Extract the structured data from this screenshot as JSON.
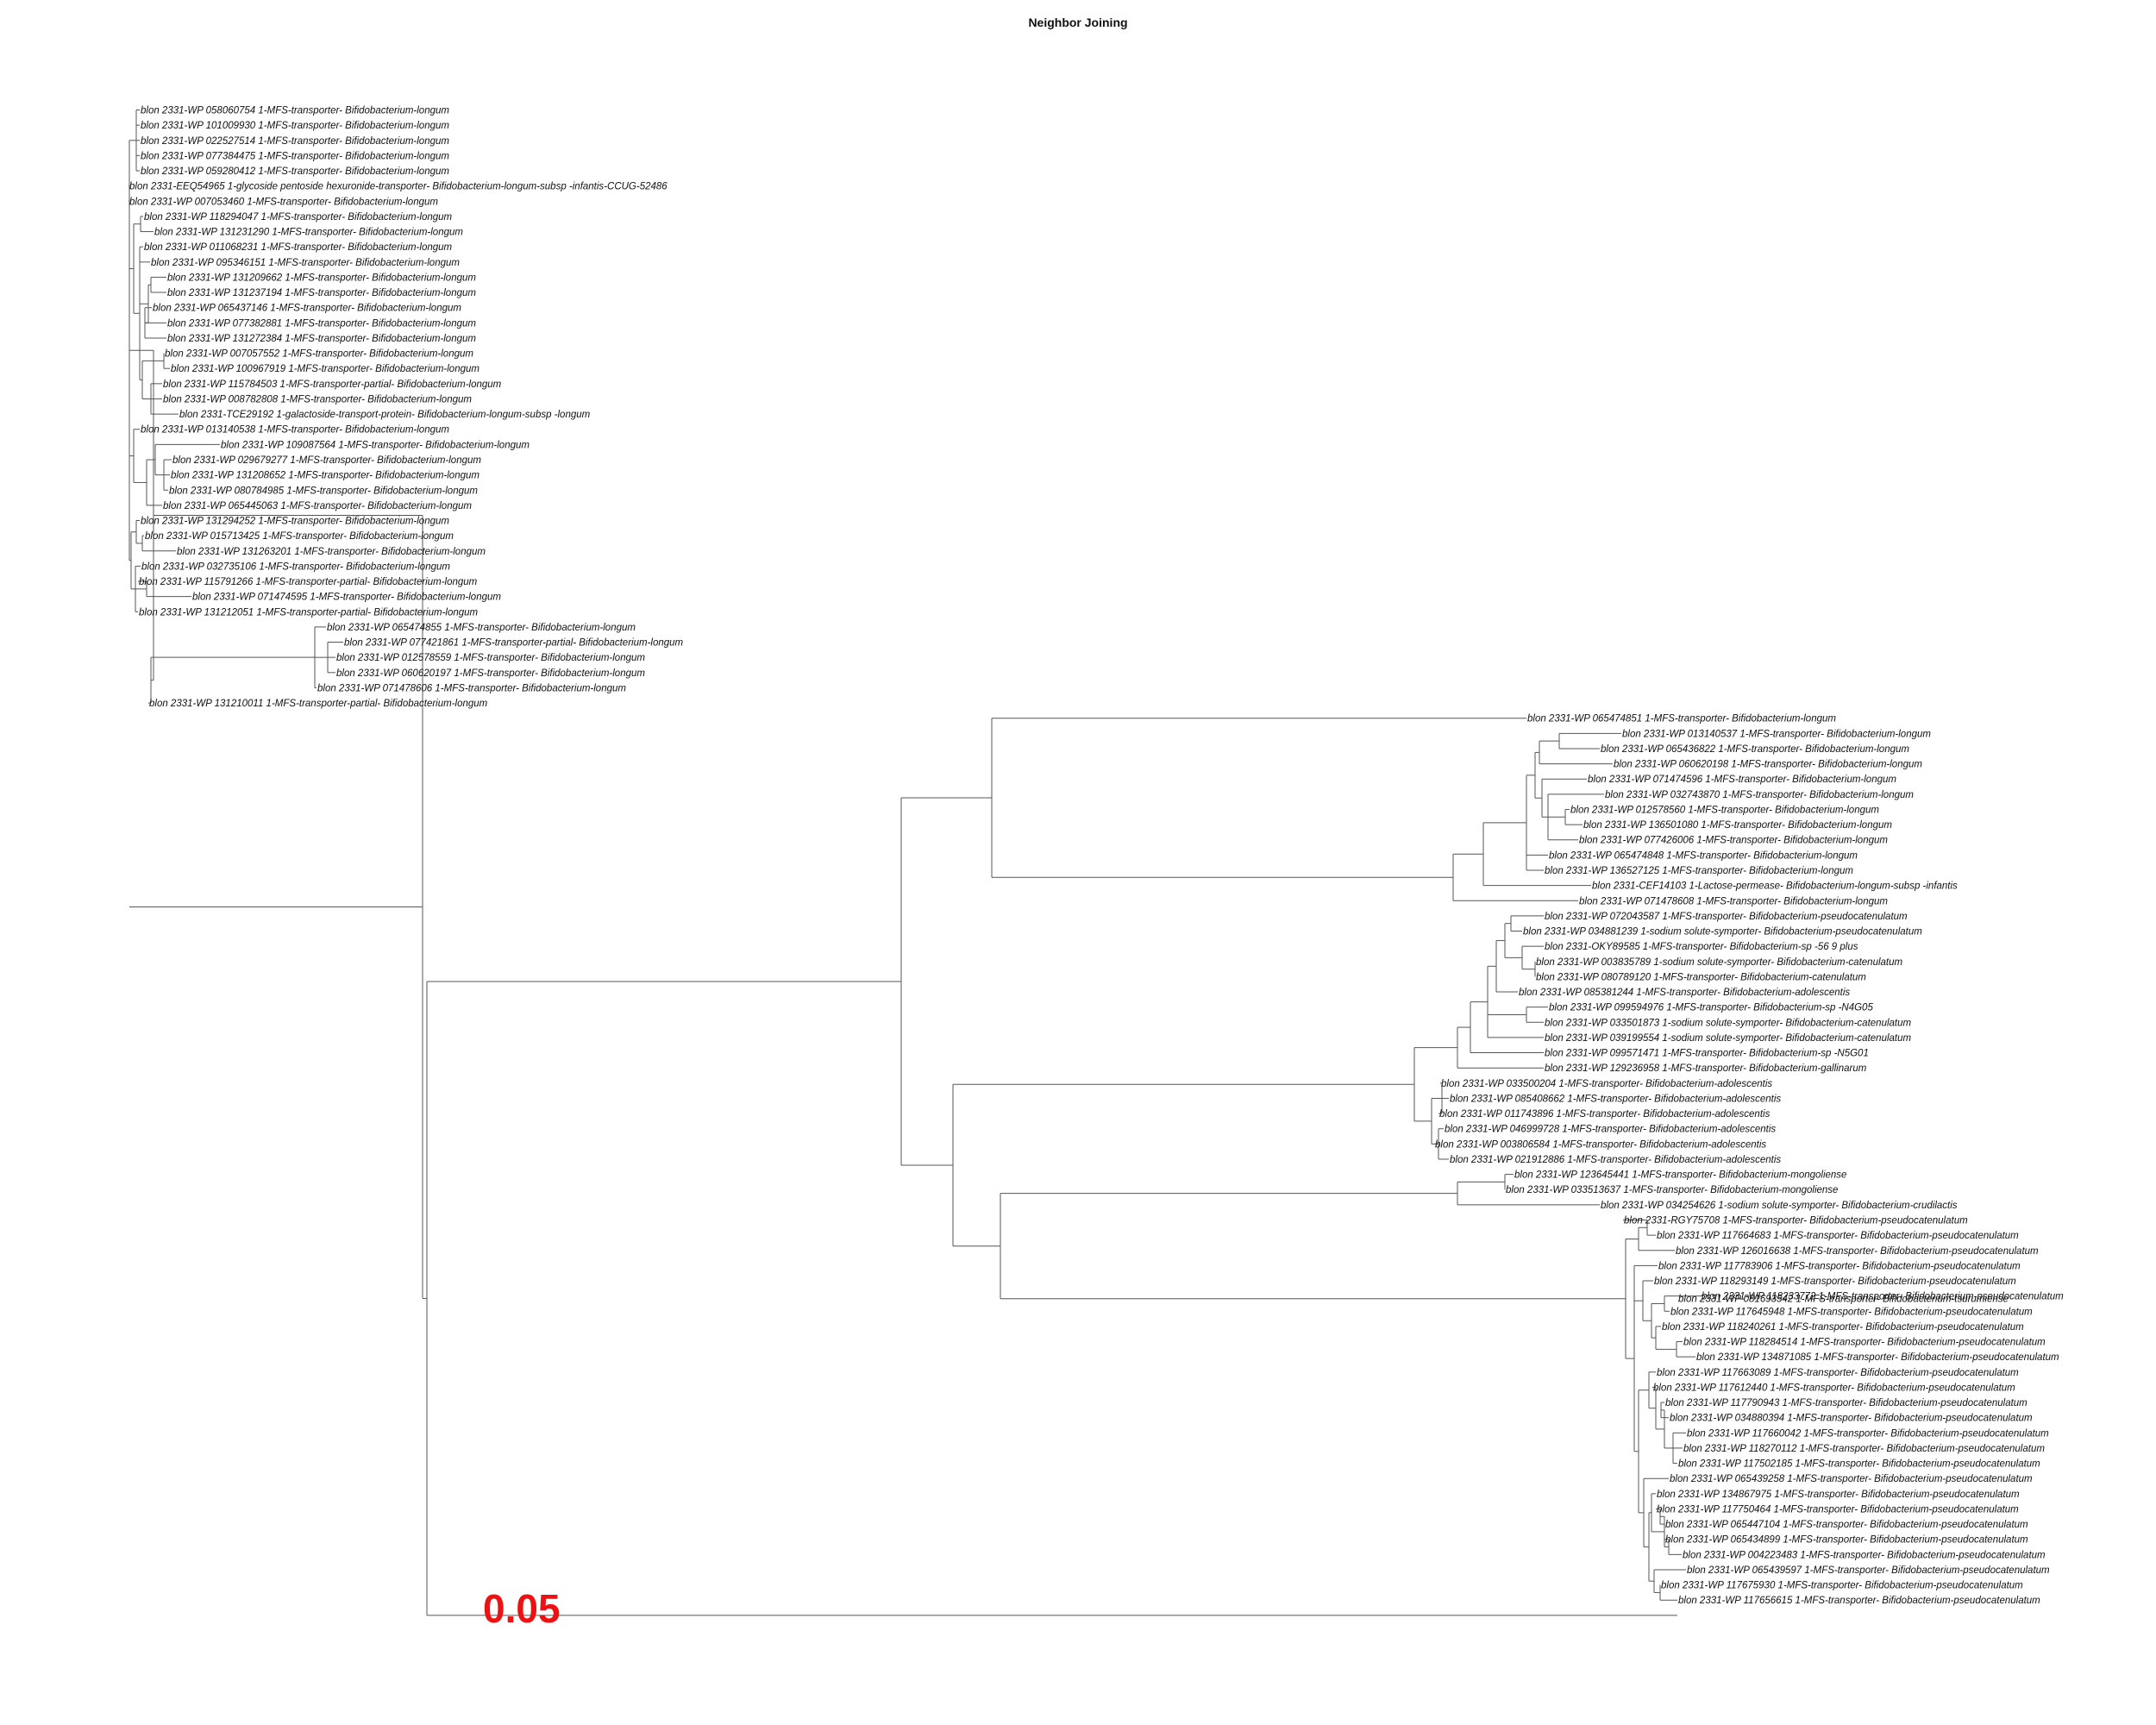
{
  "title": "Neighbor Joining",
  "scale_bar_label": "0.05",
  "colors": {
    "branch": "#555555",
    "label": "#111111",
    "scale_label": "#ee1111"
  },
  "leaves": [
    "blon 2331-WP 058060754 1-MFS-transporter- Bifidobacterium-longum",
    "blon 2331-WP 101009930 1-MFS-transporter- Bifidobacterium-longum",
    "blon 2331-WP 022527514 1-MFS-transporter- Bifidobacterium-longum",
    "blon 2331-WP 077384475 1-MFS-transporter- Bifidobacterium-longum",
    "blon 2331-WP 059280412 1-MFS-transporter- Bifidobacterium-longum",
    "blon 2331-EEQ54965 1-glycoside pentoside hexuronide-transporter- Bifidobacterium-longum-subsp -infantis-CCUG-52486",
    "blon 2331-WP 007053460 1-MFS-transporter- Bifidobacterium-longum",
    "blon 2331-WP 118294047 1-MFS-transporter- Bifidobacterium-longum",
    "blon 2331-WP 131231290 1-MFS-transporter- Bifidobacterium-longum",
    "blon 2331-WP 011068231 1-MFS-transporter- Bifidobacterium-longum",
    "blon 2331-WP 095346151 1-MFS-transporter- Bifidobacterium-longum",
    "blon 2331-WP 131209662 1-MFS-transporter- Bifidobacterium-longum",
    "blon 2331-WP 131237194 1-MFS-transporter- Bifidobacterium-longum",
    "blon 2331-WP 065437146 1-MFS-transporter- Bifidobacterium-longum",
    "blon 2331-WP 077382881 1-MFS-transporter- Bifidobacterium-longum",
    "blon 2331-WP 131272384 1-MFS-transporter- Bifidobacterium-longum",
    "blon 2331-WP 007057552 1-MFS-transporter- Bifidobacterium-longum",
    "blon 2331-WP 100967919 1-MFS-transporter- Bifidobacterium-longum",
    "blon 2331-WP 115784503 1-MFS-transporter-partial- Bifidobacterium-longum",
    "blon 2331-WP 008782808 1-MFS-transporter- Bifidobacterium-longum",
    "blon 2331-TCE29192 1-galactoside-transport-protein- Bifidobacterium-longum-subsp -longum",
    "blon 2331-WP 013140538 1-MFS-transporter- Bifidobacterium-longum",
    "blon 2331-WP 109087564 1-MFS-transporter- Bifidobacterium-longum",
    "blon 2331-WP 029679277 1-MFS-transporter- Bifidobacterium-longum",
    "blon 2331-WP 131208652 1-MFS-transporter- Bifidobacterium-longum",
    "blon 2331-WP 080784985 1-MFS-transporter- Bifidobacterium-longum",
    "blon 2331-WP 065445063 1-MFS-transporter- Bifidobacterium-longum",
    "blon 2331-WP 131294252 1-MFS-transporter- Bifidobacterium-longum",
    "blon 2331-WP 015713425 1-MFS-transporter- Bifidobacterium-longum",
    "blon 2331-WP 131263201 1-MFS-transporter- Bifidobacterium-longum",
    "blon 2331-WP 032735106 1-MFS-transporter- Bifidobacterium-longum",
    "blon 2331-WP 115791266 1-MFS-transporter-partial- Bifidobacterium-longum",
    "blon 2331-WP 071474595 1-MFS-transporter- Bifidobacterium-longum",
    "blon 2331-WP 131212051 1-MFS-transporter-partial- Bifidobacterium-longum",
    "blon 2331-WP 065474855 1-MFS-transporter- Bifidobacterium-longum",
    "blon 2331-WP 077421861 1-MFS-transporter-partial- Bifidobacterium-longum",
    "blon 2331-WP 012578559 1-MFS-transporter- Bifidobacterium-longum",
    "blon 2331-WP 060620197 1-MFS-transporter- Bifidobacterium-longum",
    "blon 2331-WP 071478606 1-MFS-transporter- Bifidobacterium-longum",
    "blon 2331-WP 131210011 1-MFS-transporter-partial- Bifidobacterium-longum",
    "blon 2331-WP 065474851 1-MFS-transporter- Bifidobacterium-longum",
    "blon 2331-WP 013140537 1-MFS-transporter- Bifidobacterium-longum",
    "blon 2331-WP 065436822 1-MFS-transporter- Bifidobacterium-longum",
    "blon 2331-WP 060620198 1-MFS-transporter- Bifidobacterium-longum",
    "blon 2331-WP 071474596 1-MFS-transporter- Bifidobacterium-longum",
    "blon 2331-WP 032743870 1-MFS-transporter- Bifidobacterium-longum",
    "blon 2331-WP 012578560 1-MFS-transporter- Bifidobacterium-longum",
    "blon 2331-WP 136501080 1-MFS-transporter- Bifidobacterium-longum",
    "blon 2331-WP 077426006 1-MFS-transporter- Bifidobacterium-longum",
    "blon 2331-WP 065474848 1-MFS-transporter- Bifidobacterium-longum",
    "blon 2331-WP 136527125 1-MFS-transporter- Bifidobacterium-longum",
    "blon 2331-CEF14103 1-Lactose-permease- Bifidobacterium-longum-subsp -infantis",
    "blon 2331-WP 071478608 1-MFS-transporter- Bifidobacterium-longum",
    "blon 2331-WP 072043587 1-MFS-transporter- Bifidobacterium-pseudocatenulatum",
    "blon 2331-WP 034881239 1-sodium solute-symporter- Bifidobacterium-pseudocatenulatum",
    "blon 2331-OKY89585 1-MFS-transporter- Bifidobacterium-sp -56 9 plus",
    "blon 2331-WP 003835789 1-sodium solute-symporter- Bifidobacterium-catenulatum",
    "blon 2331-WP 080789120 1-MFS-transporter- Bifidobacterium-catenulatum",
    "blon 2331-WP 085381244 1-MFS-transporter- Bifidobacterium-adolescentis",
    "blon 2331-WP 099594976 1-MFS-transporter- Bifidobacterium-sp -N4G05",
    "blon 2331-WP 033501873 1-sodium solute-symporter- Bifidobacterium-catenulatum",
    "blon 2331-WP 039199554 1-sodium solute-symporter- Bifidobacterium-catenulatum",
    "blon 2331-WP 099571471 1-MFS-transporter- Bifidobacterium-sp -N5G01",
    "blon 2331-WP 129236958 1-MFS-transporter- Bifidobacterium-gallinarum",
    "blon 2331-WP 033500204 1-MFS-transporter- Bifidobacterium-adolescentis",
    "blon 2331-WP 085408662 1-MFS-transporter- Bifidobacterium-adolescentis",
    "blon 2331-WP 011743896 1-MFS-transporter- Bifidobacterium-adolescentis",
    "blon 2331-WP 046999728 1-MFS-transporter- Bifidobacterium-adolescentis",
    "blon 2331-WP 003806584 1-MFS-transporter- Bifidobacterium-adolescentis",
    "blon 2331-WP 021912886 1-MFS-transporter- Bifidobacterium-adolescentis",
    "blon 2331-WP 123645441 1-MFS-transporter- Bifidobacterium-mongoliense",
    "blon 2331-WP 033513637 1-MFS-transporter- Bifidobacterium-mongoliense",
    "blon 2331-WP 034254626 1-sodium solute-symporter- Bifidobacterium-crudilactis",
    "blon 2331-RGY75708 1-MFS-transporter- Bifidobacterium-pseudocatenulatum",
    "blon 2331-WP 117664683 1-MFS-transporter- Bifidobacterium-pseudocatenulatum",
    "blon 2331-WP 126016638 1-MFS-transporter- Bifidobacterium-pseudocatenulatum",
    "blon 2331-WP 117783906 1-MFS-transporter- Bifidobacterium-pseudocatenulatum",
    "blon 2331-WP 118293149 1-MFS-transporter- Bifidobacterium-pseudocatenulatum",
    "blon 2331-WP 118233772 1-MFS-transporter- Bifidobacterium-pseudocatenulatum",
    "blon 2331-WP 117645948 1-MFS-transporter- Bifidobacterium-pseudocatenulatum",
    "blon 2331-WP 118240261 1-MFS-transporter- Bifidobacterium-pseudocatenulatum",
    "blon 2331-WP 118284514 1-MFS-transporter- Bifidobacterium-pseudocatenulatum",
    "blon 2331-WP 134871085 1-MFS-transporter- Bifidobacterium-pseudocatenulatum",
    "blon 2331-WP 117663089 1-MFS-transporter- Bifidobacterium-pseudocatenulatum",
    "blon 2331-WP 117612440 1-MFS-transporter- Bifidobacterium-pseudocatenulatum",
    "blon 2331-WP 117790943 1-MFS-transporter- Bifidobacterium-pseudocatenulatum",
    "blon 2331-WP 034880394 1-MFS-transporter- Bifidobacterium-pseudocatenulatum",
    "blon 2331-WP 117660042 1-MFS-transporter- Bifidobacterium-pseudocatenulatum",
    "blon 2331-WP 118270112 1-MFS-transporter- Bifidobacterium-pseudocatenulatum",
    "blon 2331-WP 117502185 1-MFS-transporter- Bifidobacterium-pseudocatenulatum",
    "blon 2331-WP 065439258 1-MFS-transporter- Bifidobacterium-pseudocatenulatum",
    "blon 2331-WP 134867975 1-MFS-transporter- Bifidobacterium-pseudocatenulatum",
    "blon 2331-WP 117750464 1-MFS-transporter- Bifidobacterium-pseudocatenulatum",
    "blon 2331-WP 065447104 1-MFS-transporter- Bifidobacterium-pseudocatenulatum",
    "blon 2331-WP 065434899 1-MFS-transporter- Bifidobacterium-pseudocatenulatum",
    "blon 2331-WP 004223483 1-MFS-transporter- Bifidobacterium-pseudocatenulatum",
    "blon 2331-WP 065439597 1-MFS-transporter- Bifidobacterium-pseudocatenulatum",
    "blon 2331-WP 117675930 1-MFS-transporter- Bifidobacterium-pseudocatenulatum",
    "blon 2331-WP 117656615 1-MFS-transporter- Bifidobacterium-pseudocatenulatum",
    "blon 2331-WP 081693542 1-MFS-transporter- Bifidobacterium-tsurumiense"
  ]
}
